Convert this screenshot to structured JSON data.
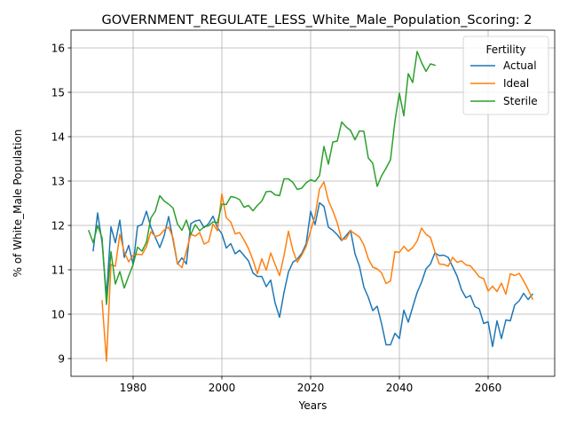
{
  "chart_data": {
    "type": "line",
    "title": "GOVERNMENT_REGULATE_LESS_White_Male_Population_Scoring: 2",
    "xlabel": "Years",
    "ylabel": "% of White_Male Population",
    "xlim": [
      1966,
      2075
    ],
    "ylim": [
      8.6,
      16.4
    ],
    "x_ticks": [
      1980,
      2000,
      2020,
      2040,
      2060
    ],
    "y_ticks": [
      9,
      10,
      11,
      12,
      13,
      14,
      15,
      16
    ],
    "grid": true,
    "legend": {
      "title": "Fertility",
      "position": "top-right"
    },
    "series": [
      {
        "name": "Actual",
        "color": "#1f77b4",
        "x": [
          1971,
          1972,
          1973,
          1974,
          1975,
          1976,
          1977,
          1978,
          1979,
          1980,
          1981,
          1982,
          1983,
          1984,
          1985,
          1986,
          1987,
          1988,
          1989,
          1990,
          1991,
          1992,
          1993,
          1994,
          1995,
          1996,
          1997,
          1998,
          1999,
          2000,
          2001,
          2002,
          2003,
          2004,
          2005,
          2006,
          2007,
          2008,
          2009,
          2010,
          2011,
          2012,
          2013,
          2014,
          2015,
          2016,
          2017,
          2018,
          2019,
          2020,
          2021,
          2022,
          2023,
          2024,
          2025,
          2026,
          2027,
          2028,
          2029,
          2030,
          2031,
          2032,
          2033,
          2034,
          2035,
          2036,
          2037,
          2038,
          2039,
          2040,
          2041,
          2042,
          2043,
          2044,
          2045,
          2046,
          2047,
          2048,
          2049,
          2050,
          2051,
          2052,
          2053,
          2054,
          2055,
          2056,
          2057,
          2058,
          2059,
          2060,
          2061,
          2062,
          2063,
          2064,
          2065,
          2066,
          2067,
          2068,
          2069,
          2070
        ],
        "values": [
          11.43,
          12.28,
          11.62,
          10.4,
          11.97,
          11.61,
          12.12,
          11.28,
          11.55,
          11.12,
          11.98,
          12.02,
          12.32,
          11.96,
          11.73,
          11.5,
          11.77,
          12.2,
          11.67,
          11.13,
          11.27,
          11.13,
          12.04,
          12.1,
          12.12,
          11.95,
          12.04,
          12.21,
          11.95,
          11.81,
          11.49,
          11.59,
          11.36,
          11.44,
          11.32,
          11.2,
          10.93,
          10.85,
          10.85,
          10.62,
          10.77,
          10.25,
          9.93,
          10.49,
          10.95,
          11.17,
          11.24,
          11.37,
          11.59,
          12.32,
          12.02,
          12.51,
          12.43,
          11.96,
          11.89,
          11.79,
          11.66,
          11.77,
          11.89,
          11.36,
          11.08,
          10.61,
          10.38,
          10.08,
          10.18,
          9.78,
          9.31,
          9.31,
          9.57,
          9.45,
          10.09,
          9.82,
          10.16,
          10.49,
          10.72,
          11.02,
          11.13,
          11.38,
          11.32,
          11.33,
          11.28,
          11.07,
          10.86,
          10.55,
          10.37,
          10.42,
          10.17,
          10.12,
          9.79,
          9.83,
          9.27,
          9.85,
          9.45,
          9.87,
          9.85,
          10.21,
          10.3,
          10.47,
          10.33,
          10.45
        ]
      },
      {
        "name": "Ideal",
        "color": "#ff7f0e",
        "x": [
          1973,
          1974,
          1975,
          1976,
          1977,
          1978,
          1979,
          1980,
          1981,
          1982,
          1983,
          1984,
          1985,
          1986,
          1987,
          1988,
          1989,
          1990,
          1991,
          1992,
          1993,
          1994,
          1995,
          1996,
          1997,
          1998,
          1999,
          2000,
          2001,
          2002,
          2003,
          2004,
          2005,
          2006,
          2007,
          2008,
          2009,
          2010,
          2011,
          2012,
          2013,
          2014,
          2015,
          2016,
          2017,
          2018,
          2019,
          2020,
          2021,
          2022,
          2023,
          2024,
          2025,
          2026,
          2027,
          2028,
          2029,
          2030,
          2031,
          2032,
          2033,
          2034,
          2035,
          2036,
          2037,
          2038,
          2039,
          2040,
          2041,
          2042,
          2043,
          2044,
          2045,
          2046,
          2047,
          2048,
          2049,
          2050,
          2051,
          2052,
          2053,
          2054,
          2055,
          2056,
          2057,
          2058,
          2059,
          2060,
          2061,
          2062,
          2063,
          2064,
          2065,
          2066,
          2067,
          2068,
          2069,
          2070
        ],
        "values": [
          10.3,
          8.94,
          11.12,
          11.08,
          11.8,
          11.4,
          11.18,
          11.33,
          11.35,
          11.34,
          11.52,
          11.86,
          11.75,
          11.78,
          11.9,
          11.96,
          11.72,
          11.14,
          11.05,
          11.42,
          11.8,
          11.76,
          11.84,
          11.58,
          11.63,
          12.03,
          11.88,
          12.71,
          12.17,
          12.08,
          11.81,
          11.84,
          11.67,
          11.48,
          11.22,
          10.91,
          11.25,
          10.99,
          11.38,
          11.12,
          10.87,
          11.32,
          11.87,
          11.44,
          11.17,
          11.33,
          11.53,
          11.88,
          12.22,
          12.82,
          12.98,
          12.56,
          12.33,
          12.06,
          11.68,
          11.7,
          11.88,
          11.81,
          11.74,
          11.56,
          11.25,
          11.06,
          11.02,
          10.93,
          10.69,
          10.75,
          11.41,
          11.39,
          11.53,
          11.42,
          11.5,
          11.65,
          11.94,
          11.8,
          11.73,
          11.41,
          11.13,
          11.12,
          11.08,
          11.28,
          11.17,
          11.2,
          11.11,
          11.09,
          10.97,
          10.84,
          10.8,
          10.52,
          10.63,
          10.51,
          10.7,
          10.45,
          10.91,
          10.87,
          10.92,
          10.75,
          10.56,
          10.34
        ]
      },
      {
        "name": "Sterile",
        "color": "#2ca02c",
        "x": [
          1970,
          1971,
          1972,
          1973,
          1974,
          1975,
          1976,
          1977,
          1978,
          1979,
          1980,
          1981,
          1982,
          1983,
          1984,
          1985,
          1986,
          1987,
          1988,
          1989,
          1990,
          1991,
          1992,
          1993,
          1994,
          1995,
          1996,
          1997,
          1998,
          1999,
          2000,
          2001,
          2002,
          2003,
          2004,
          2005,
          2006,
          2007,
          2008,
          2009,
          2010,
          2011,
          2012,
          2013,
          2014,
          2015,
          2016,
          2017,
          2018,
          2019,
          2020,
          2021,
          2022,
          2023,
          2024,
          2025,
          2026,
          2027,
          2028,
          2029,
          2030,
          2031,
          2032,
          2033,
          2034,
          2035,
          2036,
          2037,
          2038,
          2039,
          2040,
          2041,
          2042,
          2043,
          2044,
          2045,
          2046,
          2047,
          2048
        ],
        "values": [
          11.88,
          11.61,
          12.0,
          11.72,
          10.22,
          11.41,
          10.68,
          10.96,
          10.59,
          10.86,
          11.12,
          11.51,
          11.42,
          11.62,
          12.17,
          12.32,
          12.67,
          12.55,
          12.48,
          12.39,
          12.03,
          11.89,
          12.12,
          11.8,
          12.02,
          11.88,
          11.97,
          11.99,
          12.08,
          12.06,
          12.48,
          12.47,
          12.65,
          12.63,
          12.58,
          12.41,
          12.45,
          12.33,
          12.45,
          12.55,
          12.76,
          12.77,
          12.69,
          12.67,
          13.05,
          13.05,
          12.97,
          12.81,
          12.84,
          12.96,
          13.03,
          12.99,
          13.12,
          13.78,
          13.38,
          13.88,
          13.9,
          14.33,
          14.22,
          14.14,
          13.93,
          14.13,
          14.12,
          13.52,
          13.4,
          12.88,
          13.12,
          13.29,
          13.48,
          14.35,
          14.98,
          14.47,
          15.42,
          15.22,
          15.92,
          15.67,
          15.47,
          15.64,
          15.61
        ]
      }
    ]
  }
}
